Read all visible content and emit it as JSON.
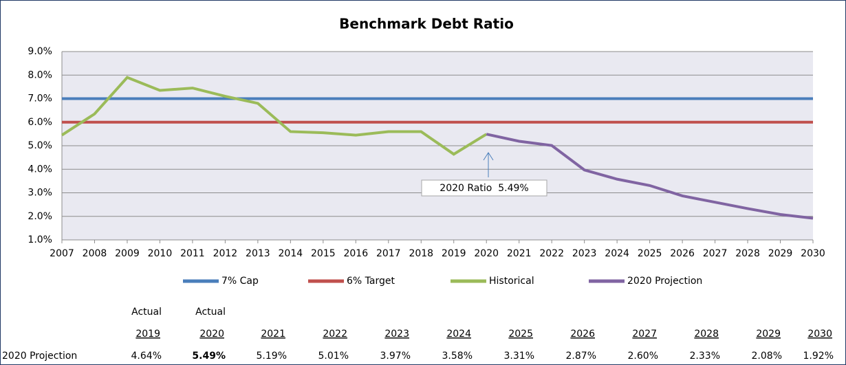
{
  "chart_data": {
    "type": "line",
    "title": "Benchmark Debt Ratio",
    "categories": [
      "2007",
      "2008",
      "2009",
      "2010",
      "2011",
      "2012",
      "2013",
      "2014",
      "2015",
      "2016",
      "2017",
      "2018",
      "2019",
      "2020",
      "2021",
      "2022",
      "2023",
      "2024",
      "2025",
      "2026",
      "2027",
      "2028",
      "2029",
      "2030"
    ],
    "ylim": [
      1,
      9
    ],
    "yticks": [
      {
        "value": 1,
        "label": "1.0%"
      },
      {
        "value": 2,
        "label": "2.0%"
      },
      {
        "value": 3,
        "label": "3.0%"
      },
      {
        "value": 4,
        "label": "4.0%"
      },
      {
        "value": 5,
        "label": "5.0%"
      },
      {
        "value": 6,
        "label": "6.0%"
      },
      {
        "value": 7,
        "label": "7.0%"
      },
      {
        "value": 8,
        "label": "8.0%"
      },
      {
        "value": 9,
        "label": "9.0%"
      }
    ],
    "grid": true,
    "series": [
      {
        "name": "7% Cap",
        "color": "#4a7ebb",
        "values": [
          7,
          7,
          7,
          7,
          7,
          7,
          7,
          7,
          7,
          7,
          7,
          7,
          7,
          7,
          7,
          7,
          7,
          7,
          7,
          7,
          7,
          7,
          7,
          7
        ]
      },
      {
        "name": "6% Target",
        "color": "#c0504d",
        "values": [
          6,
          6,
          6,
          6,
          6,
          6,
          6,
          6,
          6,
          6,
          6,
          6,
          6,
          6,
          6,
          6,
          6,
          6,
          6,
          6,
          6,
          6,
          6,
          6
        ]
      },
      {
        "name": "Historical",
        "color": "#9bbb59",
        "values": [
          5.45,
          6.35,
          7.9,
          7.35,
          7.45,
          7.1,
          6.8,
          5.6,
          5.55,
          5.45,
          5.6,
          5.6,
          4.64,
          5.49,
          null,
          null,
          null,
          null,
          null,
          null,
          null,
          null,
          null,
          null
        ]
      },
      {
        "name": "2020 Projection",
        "color": "#8064a2",
        "values": [
          null,
          null,
          null,
          null,
          null,
          null,
          null,
          null,
          null,
          null,
          null,
          null,
          null,
          5.49,
          5.19,
          5.01,
          3.97,
          3.58,
          3.31,
          2.87,
          2.6,
          2.33,
          2.08,
          1.92
        ]
      }
    ],
    "annotation": "2020 Ratio  5.49%"
  },
  "table": {
    "row_label": "2020 Projection",
    "top_headers": [
      "Actual",
      "Actual"
    ],
    "years": [
      "2019",
      "2020",
      "2021",
      "2022",
      "2023",
      "2024",
      "2025",
      "2026",
      "2027",
      "2028",
      "2029",
      "2030"
    ],
    "values": [
      "4.64%",
      "5.49%",
      "5.19%",
      "5.01%",
      "3.97%",
      "3.58%",
      "3.31%",
      "2.87%",
      "2.60%",
      "2.33%",
      "2.08%",
      "1.92%"
    ]
  }
}
